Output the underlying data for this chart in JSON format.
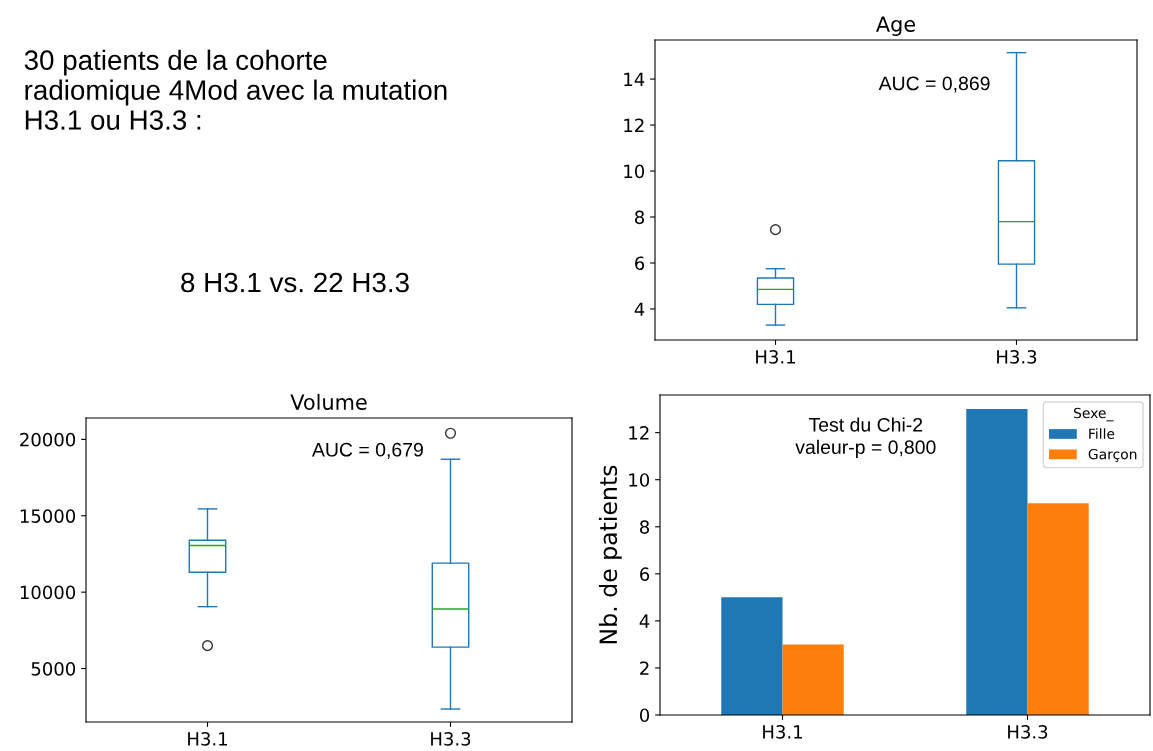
{
  "chart_data": [
    {
      "type": "other",
      "annotations": [
        "30 patients de la cohorte\nradiomique 4Mod avec la mutation\nH3.1 ou H3.3 :",
        "8 H3.1 vs. 22 H3.3"
      ]
    },
    {
      "type": "box",
      "title": "Age",
      "categories": [
        "H3.1",
        "H3.3"
      ],
      "ylim": [
        2.65,
        15.7
      ],
      "yticks": [
        4,
        6,
        8,
        10,
        12,
        14
      ],
      "grid": false,
      "annotations": [
        "AUC = 0,869"
      ],
      "series": [
        {
          "color": "#1f77b4",
          "boxes": [
            {
              "low": 3.3,
              "q1": 4.2,
              "median": 4.85,
              "q3": 5.35,
              "high": 5.75,
              "outliers": [
                7.45
              ]
            },
            {
              "low": 4.05,
              "q1": 5.95,
              "median": 7.8,
              "q3": 10.45,
              "high": 15.15
            }
          ]
        }
      ]
    },
    {
      "type": "box",
      "title": "Volume",
      "categories": [
        "H3.1",
        "H3.3"
      ],
      "ylim": [
        1500,
        21400
      ],
      "yticks": [
        5000,
        10000,
        15000,
        20000
      ],
      "grid": false,
      "annotations": [
        "AUC = 0,679"
      ],
      "series": [
        {
          "color": "#1f77b4",
          "boxes": [
            {
              "low": 9050,
              "q1": 11300,
              "median": 13050,
              "q3": 13400,
              "high": 15450,
              "outliers": [
                6500
              ]
            },
            {
              "low": 2350,
              "q1": 6400,
              "median": 8900,
              "q3": 11900,
              "high": 18700,
              "outliers": [
                20400
              ]
            }
          ]
        }
      ]
    },
    {
      "type": "bar",
      "categories": [
        "H3.1",
        "H3.3"
      ],
      "ylabel": "Nb. de patients",
      "ylim": [
        0,
        13.6
      ],
      "yticks": [
        0,
        2,
        4,
        6,
        8,
        10,
        12
      ],
      "grid": false,
      "legend": "top right",
      "legend_title": "Sexe_",
      "annotations": [
        "Test du Chi-2\nvaleur-p = 0,800"
      ],
      "series": [
        {
          "name": "Fille",
          "color": "#1f77b4",
          "values": [
            5,
            13
          ]
        },
        {
          "name": "Garçon",
          "color": "#ff7f0e",
          "values": [
            3,
            9
          ]
        }
      ]
    }
  ]
}
